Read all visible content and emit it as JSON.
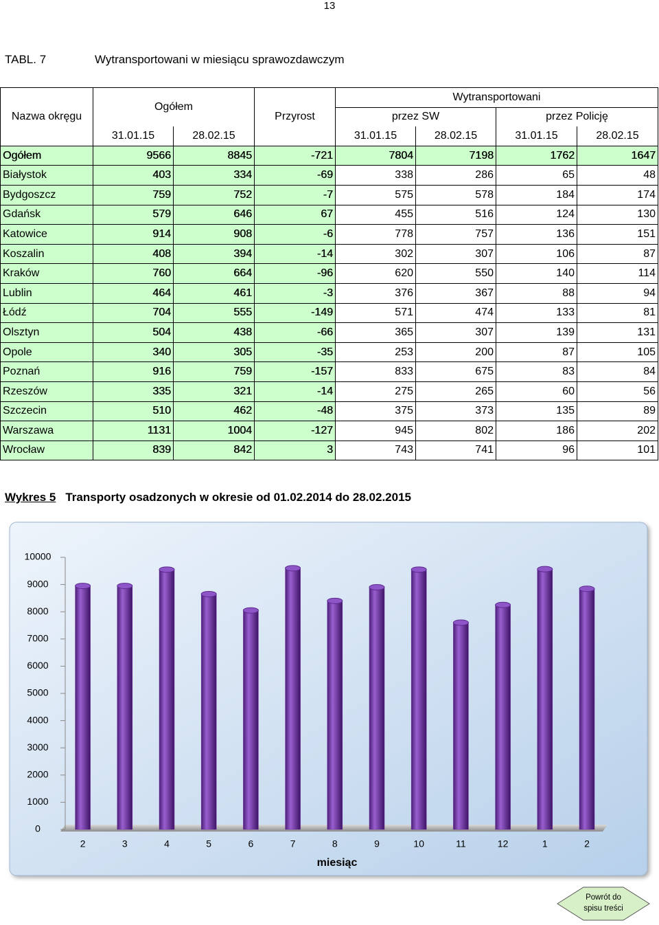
{
  "page_number": "13",
  "header": {
    "table_id": "TABL. 7",
    "title": "Wytransportowani w miesiącu sprawozdawczym"
  },
  "table": {
    "headers": {
      "name": "Nazwa okręgu",
      "total": "Ogółem",
      "growth": "Przyrost",
      "transported": "Wytransportowani",
      "by_sw": "przez SW",
      "by_police": "przez Policję",
      "dates": [
        "31.01.15",
        "28.02.15",
        "31.01.15",
        "28.02.15",
        "31.01.15",
        "28.02.15"
      ]
    },
    "rows": [
      [
        "Ogółem",
        9566,
        8845,
        -721,
        7804,
        7198,
        1762,
        1647
      ],
      [
        "Białystok",
        403,
        334,
        -69,
        338,
        286,
        65,
        48
      ],
      [
        "Bydgoszcz",
        759,
        752,
        -7,
        575,
        578,
        184,
        174
      ],
      [
        "Gdańsk",
        579,
        646,
        67,
        455,
        516,
        124,
        130
      ],
      [
        "Katowice",
        914,
        908,
        -6,
        778,
        757,
        136,
        151
      ],
      [
        "Koszalin",
        408,
        394,
        -14,
        302,
        307,
        106,
        87
      ],
      [
        "Kraków",
        760,
        664,
        -96,
        620,
        550,
        140,
        114
      ],
      [
        "Lublin",
        464,
        461,
        -3,
        376,
        367,
        88,
        94
      ],
      [
        "Łódź",
        704,
        555,
        -149,
        571,
        474,
        133,
        81
      ],
      [
        "Olsztyn",
        504,
        438,
        -66,
        365,
        307,
        139,
        131
      ],
      [
        "Opole",
        340,
        305,
        -35,
        253,
        200,
        87,
        105
      ],
      [
        "Poznań",
        916,
        759,
        -157,
        833,
        675,
        83,
        84
      ],
      [
        "Rzeszów",
        335,
        321,
        -14,
        275,
        265,
        60,
        56
      ],
      [
        "Szczecin",
        510,
        462,
        -48,
        375,
        373,
        135,
        89
      ],
      [
        "Warszawa",
        1131,
        1004,
        -127,
        945,
        802,
        186,
        202
      ],
      [
        "Wrocław",
        839,
        842,
        3,
        743,
        741,
        96,
        101
      ]
    ]
  },
  "chart_heading": {
    "label": "Wykres 5",
    "title": "Transporty osadzonych w okresie od 01.02.2014 do 28.02.2015"
  },
  "chart_data": {
    "type": "bar",
    "categories": [
      "2",
      "3",
      "4",
      "5",
      "6",
      "7",
      "8",
      "9",
      "10",
      "11",
      "12",
      "1",
      "2"
    ],
    "values": [
      8950,
      8950,
      9550,
      8650,
      8050,
      9600,
      8400,
      8900,
      9550,
      7600,
      8250,
      9566,
      8845
    ],
    "color": "#7030a0",
    "x_label": "miesiąc",
    "ylim": [
      0,
      10000
    ],
    "yticks": [
      0,
      1000,
      2000,
      3000,
      4000,
      5000,
      6000,
      7000,
      8000,
      9000,
      10000
    ],
    "grid": false
  },
  "nav_button": "Powrót do spisu treści"
}
